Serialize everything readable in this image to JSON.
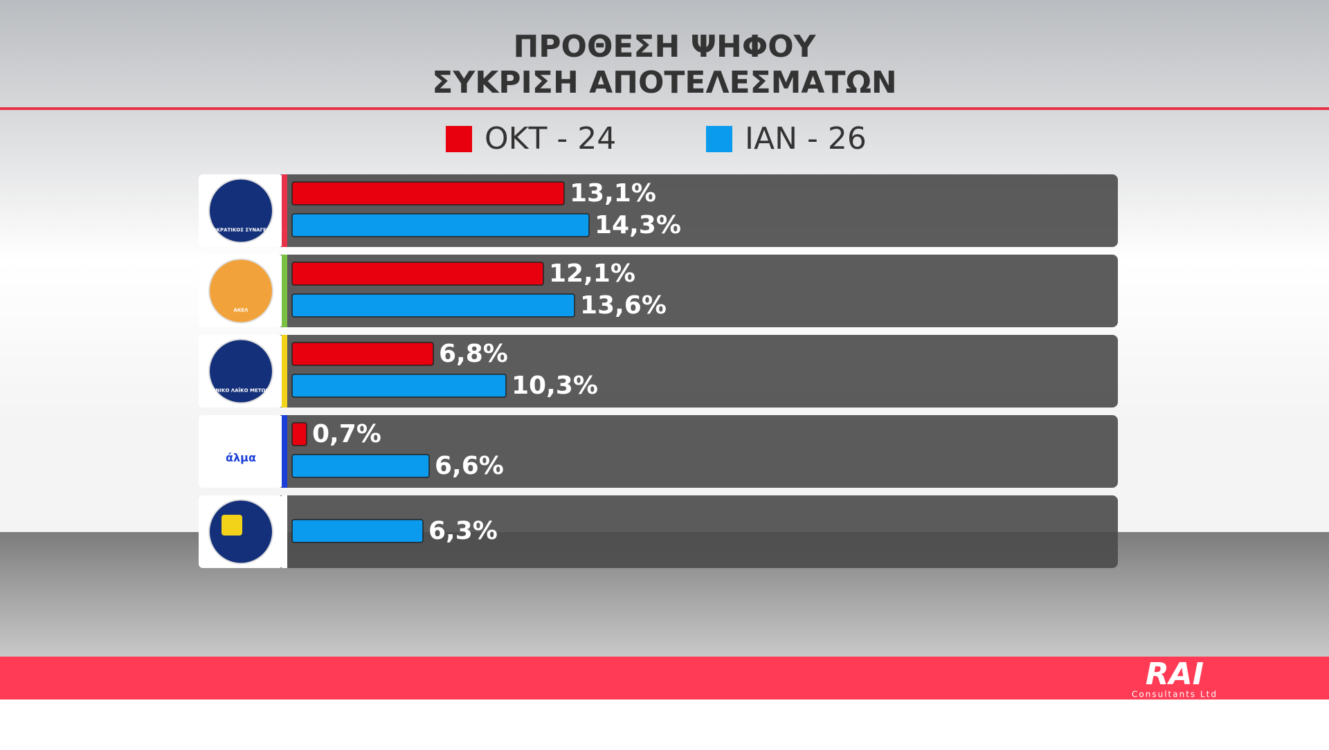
{
  "chart_data": {
    "type": "bar",
    "orientation": "horizontal",
    "title": "ΠΡΟΘΕΣΗ ΨΗΦΟΥ",
    "subtitle": "ΣΥΚΡΙΣΗ ΑΠΟΤΕΛΕΣΜΑΤΩΝ",
    "categories": [
      "ΔΗΜΟΚΡΑΤΙΚΟΣ ΣΥΝΑΓΕΡΜΟΣ",
      "ΑΚΕΛ",
      "ΕΘΝΙΚΟ ΛΑΪΚΟ ΜΕΤΩΠΟ",
      "άλμα",
      null
    ],
    "series": [
      {
        "name": "ΟΚΤ - 24",
        "color": "#e8000f",
        "values": [
          13.1,
          12.1,
          6.8,
          0.7,
          null
        ],
        "value_labels": [
          "13,1%",
          "12,1%",
          "6,8%",
          "0,7%",
          null
        ]
      },
      {
        "name": "ΙΑΝ - 26",
        "color": "#0a9bef",
        "values": [
          14.3,
          13.6,
          10.3,
          6.6,
          6.3
        ],
        "value_labels": [
          "14,3%",
          "13,6%",
          "10,3%",
          "6,6%",
          "6,3%"
        ]
      }
    ],
    "brand": "RAI",
    "brand_subtitle": "Consultants Ltd"
  }
}
